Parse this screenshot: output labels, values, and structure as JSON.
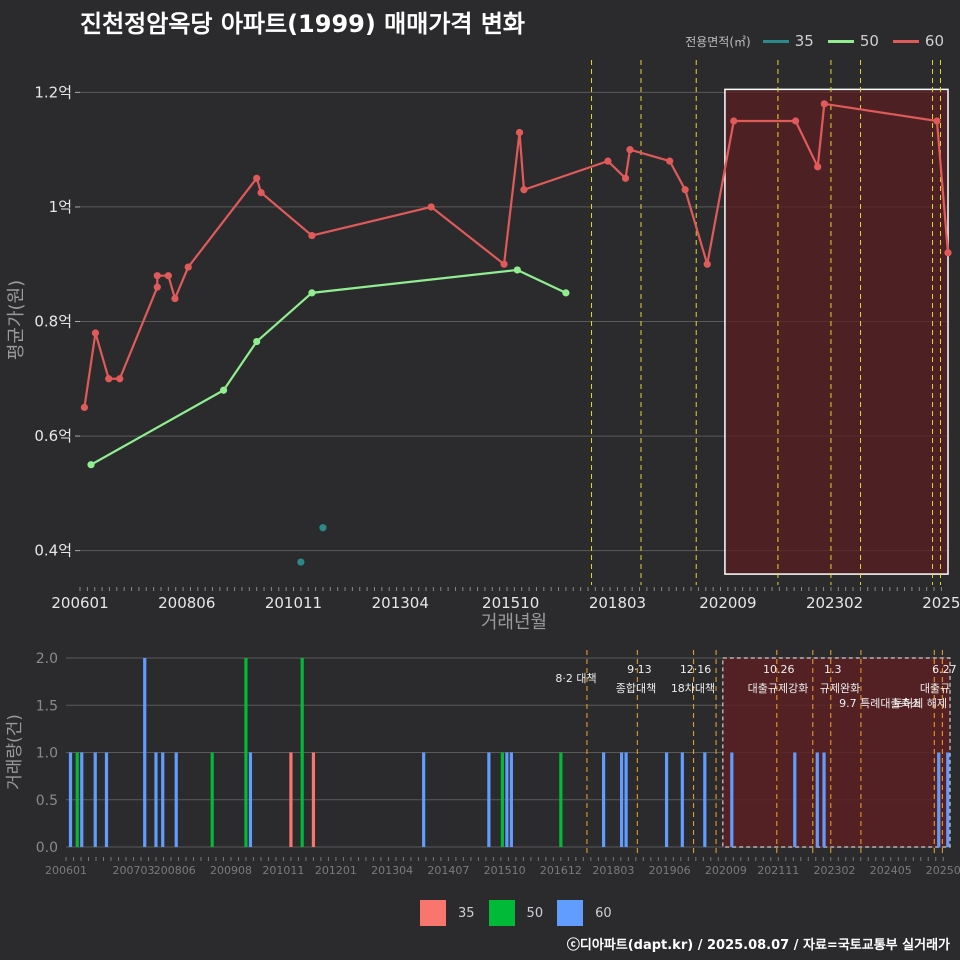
{
  "title": "진천정암옥당 아파트(1999) 매매가격 변화",
  "credit": "ⓒ디아파트(dapt.kr) / 2025.08.07 / 자료=국토교통부 실거래가",
  "legend": {
    "title": "전용면적(㎡)",
    "items": [
      {
        "label": "35",
        "line_color": "#2a8a8a",
        "bar_color": "#f8766d"
      },
      {
        "label": "50",
        "line_color": "#90ee90",
        "bar_color": "#00ba38"
      },
      {
        "label": "60",
        "line_color": "#e05a5a",
        "bar_color": "#619cff"
      }
    ]
  },
  "chart_data": [
    {
      "type": "line",
      "title": "진천정암옥당 아파트(1999) 매매가격 변화",
      "xlabel": "거래년월",
      "ylabel": "평균가(원)",
      "ylim": [
        0.34,
        1.26
      ],
      "xlim": [
        2006.0,
        2025.65
      ],
      "yticks": [
        0.4,
        0.6,
        0.8,
        1.0,
        1.2
      ],
      "ytick_labels": [
        "0.4억",
        "0.6억",
        "0.8억",
        "1억",
        "1.2억"
      ],
      "xticks": [
        2006.0,
        2008.417,
        2010.833,
        2013.25,
        2015.75,
        2018.167,
        2020.667,
        2023.083,
        2025.5
      ],
      "xtick_labels": [
        "200601",
        "200806",
        "201011",
        "201304",
        "201510",
        "201803",
        "202009",
        "202302",
        "2025"
      ],
      "series": [
        {
          "name": "35",
          "color": "#2a8a8a",
          "points": [
            [
              2011.0,
              0.38
            ],
            [
              2011.5,
              0.44
            ]
          ]
        },
        {
          "name": "50",
          "color": "#90ee90",
          "points": [
            [
              2006.25,
              0.55
            ],
            [
              2009.25,
              0.68
            ],
            [
              2010.0,
              0.765
            ],
            [
              2011.25,
              0.85
            ],
            [
              2015.9,
              0.89
            ],
            [
              2017.0,
              0.85
            ]
          ]
        },
        {
          "name": "60",
          "color": "#e05a5a",
          "points": [
            [
              2006.1,
              0.65
            ],
            [
              2006.35,
              0.78
            ],
            [
              2006.65,
              0.7
            ],
            [
              2006.9,
              0.7
            ],
            [
              2007.75,
              0.86
            ],
            [
              2007.75,
              0.88
            ],
            [
              2008.0,
              0.88
            ],
            [
              2008.15,
              0.84
            ],
            [
              2008.45,
              0.895
            ],
            [
              2010.0,
              1.05
            ],
            [
              2010.1,
              1.025
            ],
            [
              2011.25,
              0.95
            ],
            [
              2013.95,
              1.0
            ],
            [
              2015.6,
              0.9
            ],
            [
              2015.95,
              1.13
            ],
            [
              2016.05,
              1.03
            ],
            [
              2017.95,
              1.08
            ],
            [
              2018.35,
              1.05
            ],
            [
              2018.45,
              1.1
            ],
            [
              2019.35,
              1.08
            ],
            [
              2019.7,
              1.03
            ],
            [
              2020.2,
              0.9
            ],
            [
              2020.8,
              1.15
            ],
            [
              2022.2,
              1.15
            ],
            [
              2022.7,
              1.07
            ],
            [
              2022.85,
              1.18
            ],
            [
              2025.4,
              1.15
            ],
            [
              2025.65,
              0.92
            ]
          ]
        }
      ],
      "policy_lines": [
        2017.58,
        2018.7,
        2019.95,
        2021.8,
        2023.0,
        2023.67,
        2025.3,
        2025.48
      ],
      "highlight_range": [
        2020.6,
        2025.65
      ]
    },
    {
      "type": "bar",
      "xlabel": "",
      "ylabel": "거래량(건)",
      "ylim": [
        0,
        2.0
      ],
      "yticks": [
        0.0,
        0.5,
        1.0,
        1.5,
        2.0
      ],
      "ytick_labels": [
        "0.0",
        "0.5",
        "1.0",
        "1.5",
        "2.0"
      ],
      "xlim": [
        2006.0,
        2025.65
      ],
      "xticks": [
        2006.0,
        2007.5,
        2008.417,
        2009.667,
        2010.833,
        2012.0,
        2013.25,
        2014.5,
        2015.75,
        2017.0,
        2018.167,
        2019.417,
        2020.667,
        2021.833,
        2023.083,
        2024.333,
        2025.5
      ],
      "xtick_labels": [
        "200601",
        "200703",
        "200806",
        "200908",
        "201011",
        "201201",
        "201304",
        "201407",
        "201510",
        "201612",
        "201803",
        "201906",
        "202009",
        "202111",
        "202302",
        "202405",
        "20250"
      ],
      "bars": [
        {
          "x": 2006.1,
          "v": 1,
          "s": "60"
        },
        {
          "x": 2006.25,
          "v": 1,
          "s": "50"
        },
        {
          "x": 2006.35,
          "v": 1,
          "s": "60"
        },
        {
          "x": 2006.65,
          "v": 1,
          "s": "60"
        },
        {
          "x": 2006.9,
          "v": 1,
          "s": "60"
        },
        {
          "x": 2007.75,
          "v": 2,
          "s": "60"
        },
        {
          "x": 2008.0,
          "v": 1,
          "s": "60"
        },
        {
          "x": 2008.15,
          "v": 1,
          "s": "60"
        },
        {
          "x": 2008.45,
          "v": 1,
          "s": "60"
        },
        {
          "x": 2009.25,
          "v": 1,
          "s": "50"
        },
        {
          "x": 2010.0,
          "v": 2,
          "s": "50"
        },
        {
          "x": 2010.1,
          "v": 1,
          "s": "60"
        },
        {
          "x": 2011.0,
          "v": 1,
          "s": "35"
        },
        {
          "x": 2011.25,
          "v": 2,
          "s": "50"
        },
        {
          "x": 2011.5,
          "v": 1,
          "s": "35"
        },
        {
          "x": 2013.95,
          "v": 1,
          "s": "60"
        },
        {
          "x": 2015.4,
          "v": 1,
          "s": "60"
        },
        {
          "x": 2015.7,
          "v": 1,
          "s": "50"
        },
        {
          "x": 2015.8,
          "v": 1,
          "s": "60"
        },
        {
          "x": 2015.9,
          "v": 1,
          "s": "60"
        },
        {
          "x": 2017.0,
          "v": 1,
          "s": "50"
        },
        {
          "x": 2017.95,
          "v": 1,
          "s": "60"
        },
        {
          "x": 2018.35,
          "v": 1,
          "s": "60"
        },
        {
          "x": 2018.45,
          "v": 1,
          "s": "60"
        },
        {
          "x": 2019.35,
          "v": 1,
          "s": "60"
        },
        {
          "x": 2019.7,
          "v": 1,
          "s": "60"
        },
        {
          "x": 2020.2,
          "v": 1,
          "s": "60"
        },
        {
          "x": 2020.8,
          "v": 1,
          "s": "60"
        },
        {
          "x": 2022.2,
          "v": 1,
          "s": "60"
        },
        {
          "x": 2022.7,
          "v": 1,
          "s": "60"
        },
        {
          "x": 2022.85,
          "v": 1,
          "s": "60"
        },
        {
          "x": 2025.4,
          "v": 1,
          "s": "60"
        },
        {
          "x": 2025.6,
          "v": 1,
          "s": "60"
        }
      ],
      "policies": [
        {
          "x": 2017.58,
          "date": "",
          "label": "8·2 대책"
        },
        {
          "x": 2018.7,
          "date": "9·13",
          "label": "종합대책"
        },
        {
          "x": 2019.95,
          "date": "12·16",
          "label": "18차대책"
        },
        {
          "x": 2020.45,
          "date": "",
          "label": ""
        },
        {
          "x": 2021.8,
          "date": "10.26",
          "label": "대출규제강화"
        },
        {
          "x": 2022.6,
          "date": "",
          "label": ""
        },
        {
          "x": 2023.0,
          "date": "1.3",
          "label": "규제완화"
        },
        {
          "x": 2023.67,
          "date": "",
          "label": "9.7 특례대출축소"
        },
        {
          "x": 2025.3,
          "date": "",
          "label": "토허제 해제"
        },
        {
          "x": 2025.48,
          "date": "6.27",
          "label": "대출규"
        }
      ],
      "highlight_range": [
        2020.6,
        2025.65
      ]
    }
  ]
}
